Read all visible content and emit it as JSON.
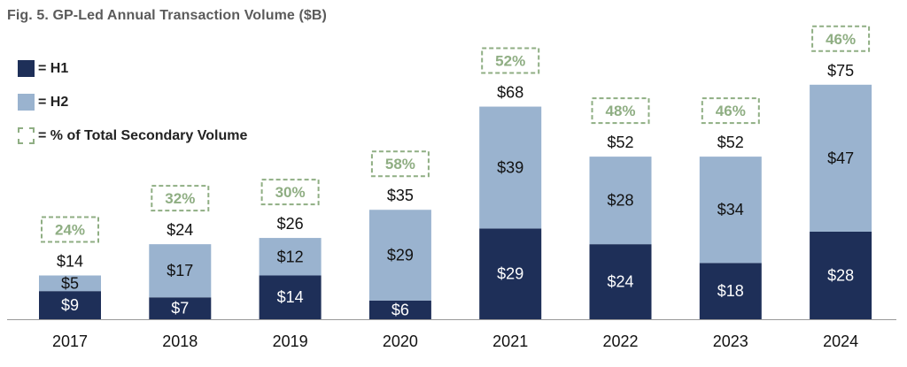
{
  "chart_data": {
    "type": "bar",
    "stacked": true,
    "title": "Fig. 5. GP-Led Annual Transaction Volume ($B)",
    "categories": [
      "2017",
      "2018",
      "2019",
      "2020",
      "2021",
      "2022",
      "2023",
      "2024"
    ],
    "series": [
      {
        "name": "H1",
        "values": [
          9,
          7,
          14,
          6,
          29,
          24,
          18,
          28
        ],
        "labels": [
          "$9",
          "$7",
          "$14",
          "$6",
          "$29",
          "$24",
          "$18",
          "$28"
        ],
        "color": "#1e2f58"
      },
      {
        "name": "H2",
        "values": [
          5,
          17,
          12,
          29,
          39,
          28,
          34,
          47
        ],
        "labels": [
          "$5",
          "$17",
          "$12",
          "$29",
          "$39",
          "$28",
          "$34",
          "$47"
        ],
        "color": "#9ab3cf"
      }
    ],
    "totals": [
      14,
      24,
      26,
      35,
      68,
      52,
      52,
      75
    ],
    "total_labels": [
      "$14",
      "$24",
      "$26",
      "$35",
      "$68",
      "$52",
      "$52",
      "$75"
    ],
    "pct_of_total_secondary": [
      "24%",
      "32%",
      "30%",
      "58%",
      "52%",
      "48%",
      "46%",
      "46%"
    ],
    "pct_color": "#8fae83",
    "legend": {
      "placement": "top-left",
      "items": [
        {
          "symbol": "= ",
          "label": "H1"
        },
        {
          "symbol": "= ",
          "label": "H2"
        },
        {
          "symbol": "= ",
          "label": "% of Total Secondary Volume"
        }
      ]
    },
    "grid": false
  }
}
